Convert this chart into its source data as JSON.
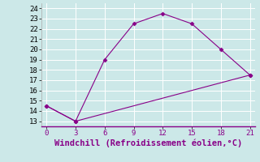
{
  "line1_x": [
    0,
    3,
    6,
    9,
    12,
    15,
    18,
    21
  ],
  "line1_y": [
    14.5,
    13.0,
    19.0,
    22.5,
    23.5,
    22.5,
    20.0,
    17.5
  ],
  "line2_x": [
    0,
    3,
    21
  ],
  "line2_y": [
    14.5,
    13.0,
    17.5
  ],
  "color": "#880088",
  "bg_color": "#CCE8E8",
  "xlabel": "Windchill (Refroidissement éolien,°C)",
  "xlim": [
    -0.5,
    21.5
  ],
  "ylim": [
    12.5,
    24.5
  ],
  "xticks": [
    0,
    3,
    6,
    9,
    12,
    15,
    18,
    21
  ],
  "yticks": [
    13,
    14,
    15,
    16,
    17,
    18,
    19,
    20,
    21,
    22,
    23,
    24
  ],
  "xlabel_fontsize": 7.5,
  "tick_fontsize": 6.5
}
